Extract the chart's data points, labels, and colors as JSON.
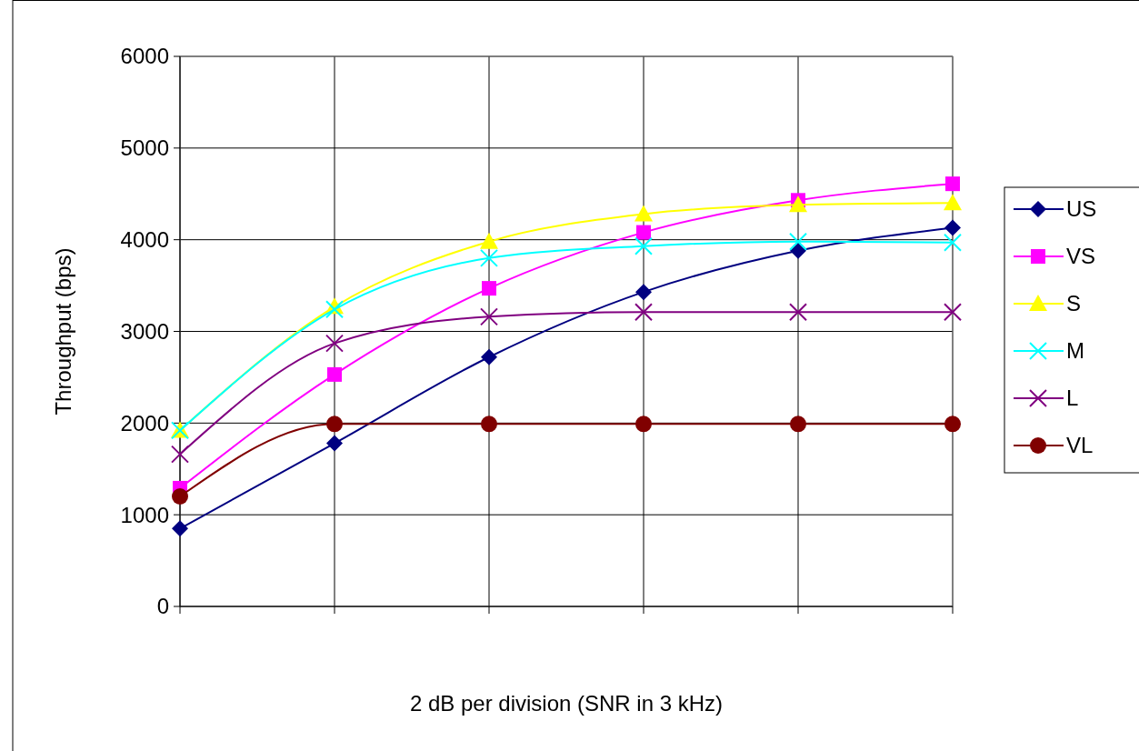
{
  "chart_data": {
    "type": "line",
    "xlabel": "2 dB per division (SNR in 3 kHz)",
    "ylabel": "Throughput (bps)",
    "categories": [
      null,
      null,
      null,
      null,
      null,
      null
    ],
    "ylim": [
      0,
      6000
    ],
    "yticks": [
      0,
      1000,
      2000,
      3000,
      4000,
      5000,
      6000
    ],
    "grid": true,
    "legend": "right",
    "series": [
      {
        "name": "US",
        "color": "#000080",
        "marker": "diamond",
        "values": [
          850,
          1780,
          2720,
          3430,
          3880,
          4130
        ]
      },
      {
        "name": "VS",
        "color": "#ff00ff",
        "marker": "square",
        "values": [
          1290,
          2530,
          3470,
          4080,
          4430,
          4610
        ]
      },
      {
        "name": "S",
        "color": "#ffff00",
        "marker": "triangle",
        "values": [
          1920,
          3270,
          3980,
          4280,
          4380,
          4400
        ]
      },
      {
        "name": "M",
        "color": "#00ffff",
        "marker": "cross",
        "values": [
          1920,
          3240,
          3800,
          3930,
          3980,
          3970
        ]
      },
      {
        "name": "L",
        "color": "#800080",
        "marker": "cross",
        "values": [
          1660,
          2870,
          3160,
          3210,
          3210,
          3210
        ]
      },
      {
        "name": "VL",
        "color": "#800000",
        "marker": "circle",
        "values": [
          1200,
          1990,
          1990,
          1990,
          1990,
          1990
        ]
      }
    ]
  }
}
